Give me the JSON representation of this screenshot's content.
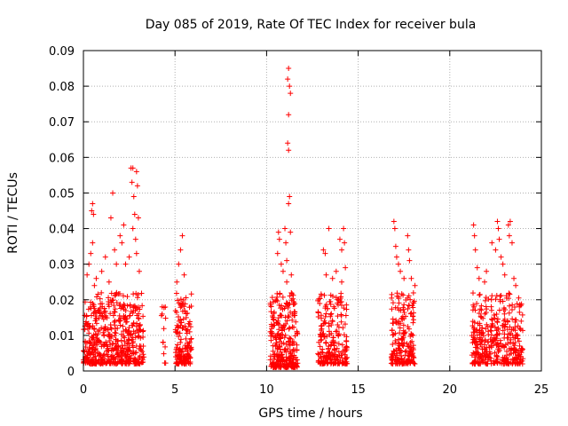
{
  "chart_data": {
    "type": "scatter",
    "title": "Day 085 of 2019, Rate Of TEC Index for receiver bula",
    "xlabel": "GPS time / hours",
    "ylabel": "ROTI / TECUs",
    "xlim": [
      0,
      25
    ],
    "ylim": [
      0,
      0.09
    ],
    "x_ticks": [
      0,
      5,
      10,
      15,
      20,
      25
    ],
    "y_ticks": [
      0,
      0.01,
      0.02,
      0.03,
      0.04,
      0.05,
      0.06,
      0.07,
      0.08,
      0.09
    ],
    "x_tick_labels": [
      "0",
      "5",
      "10",
      "15",
      "20",
      "25"
    ],
    "y_tick_labels": [
      "0",
      "0.01",
      "0.02",
      "0.03",
      "0.04",
      "0.05",
      "0.06",
      "0.07",
      "0.08",
      "0.09"
    ],
    "grid": true,
    "marker": "+",
    "color": "#ff0000",
    "series": [
      {
        "name": "ROTI",
        "clusters": [
          {
            "x_range": [
              0.0,
              3.3
            ],
            "y_range": [
              0.002,
              0.022
            ],
            "count": 520
          },
          {
            "x_range": [
              4.2,
              4.5
            ],
            "y_range": [
              0.002,
              0.018
            ],
            "count": 10
          },
          {
            "x_range": [
              5.0,
              5.9
            ],
            "y_range": [
              0.002,
              0.022
            ],
            "count": 150
          },
          {
            "x_range": [
              10.2,
              11.7
            ],
            "y_range": [
              0.001,
              0.022
            ],
            "count": 280
          },
          {
            "x_range": [
              12.8,
              14.4
            ],
            "y_range": [
              0.002,
              0.022
            ],
            "count": 220
          },
          {
            "x_range": [
              16.8,
              18.1
            ],
            "y_range": [
              0.002,
              0.022
            ],
            "count": 200
          },
          {
            "x_range": [
              21.2,
              24.0
            ],
            "y_range": [
              0.002,
              0.022
            ],
            "count": 380
          }
        ],
        "points": [
          {
            "x": 0.2,
            "y": 0.027
          },
          {
            "x": 0.3,
            "y": 0.03
          },
          {
            "x": 0.45,
            "y": 0.045
          },
          {
            "x": 0.5,
            "y": 0.047
          },
          {
            "x": 0.55,
            "y": 0.044
          },
          {
            "x": 0.5,
            "y": 0.036
          },
          {
            "x": 0.4,
            "y": 0.033
          },
          {
            "x": 0.6,
            "y": 0.024
          },
          {
            "x": 0.7,
            "y": 0.026
          },
          {
            "x": 1.0,
            "y": 0.028
          },
          {
            "x": 1.2,
            "y": 0.032
          },
          {
            "x": 1.4,
            "y": 0.025
          },
          {
            "x": 1.5,
            "y": 0.043
          },
          {
            "x": 1.6,
            "y": 0.05
          },
          {
            "x": 1.7,
            "y": 0.034
          },
          {
            "x": 1.8,
            "y": 0.03
          },
          {
            "x": 2.0,
            "y": 0.038
          },
          {
            "x": 2.1,
            "y": 0.036
          },
          {
            "x": 2.2,
            "y": 0.041
          },
          {
            "x": 2.3,
            "y": 0.03
          },
          {
            "x": 2.5,
            "y": 0.032
          },
          {
            "x": 2.6,
            "y": 0.057
          },
          {
            "x": 2.7,
            "y": 0.057
          },
          {
            "x": 2.65,
            "y": 0.053
          },
          {
            "x": 2.75,
            "y": 0.049
          },
          {
            "x": 2.8,
            "y": 0.044
          },
          {
            "x": 2.7,
            "y": 0.04
          },
          {
            "x": 2.9,
            "y": 0.056
          },
          {
            "x": 2.95,
            "y": 0.052
          },
          {
            "x": 3.0,
            "y": 0.043
          },
          {
            "x": 2.85,
            "y": 0.037
          },
          {
            "x": 2.9,
            "y": 0.033
          },
          {
            "x": 3.05,
            "y": 0.028
          },
          {
            "x": 4.3,
            "y": 0.018
          },
          {
            "x": 4.3,
            "y": 0.016
          },
          {
            "x": 4.35,
            "y": 0.008
          },
          {
            "x": 5.4,
            "y": 0.038
          },
          {
            "x": 5.3,
            "y": 0.034
          },
          {
            "x": 5.2,
            "y": 0.03
          },
          {
            "x": 5.5,
            "y": 0.027
          },
          {
            "x": 5.1,
            "y": 0.025
          },
          {
            "x": 10.65,
            "y": 0.039
          },
          {
            "x": 10.7,
            "y": 0.037
          },
          {
            "x": 10.6,
            "y": 0.033
          },
          {
            "x": 10.8,
            "y": 0.03
          },
          {
            "x": 10.9,
            "y": 0.028
          },
          {
            "x": 11.0,
            "y": 0.04
          },
          {
            "x": 11.05,
            "y": 0.036
          },
          {
            "x": 11.1,
            "y": 0.031
          },
          {
            "x": 11.2,
            "y": 0.085
          },
          {
            "x": 11.15,
            "y": 0.082
          },
          {
            "x": 11.25,
            "y": 0.08
          },
          {
            "x": 11.3,
            "y": 0.078
          },
          {
            "x": 11.2,
            "y": 0.072
          },
          {
            "x": 11.15,
            "y": 0.064
          },
          {
            "x": 11.2,
            "y": 0.062
          },
          {
            "x": 11.25,
            "y": 0.049
          },
          {
            "x": 11.2,
            "y": 0.047
          },
          {
            "x": 11.3,
            "y": 0.039
          },
          {
            "x": 11.35,
            "y": 0.027
          },
          {
            "x": 11.1,
            "y": 0.025
          },
          {
            "x": 13.1,
            "y": 0.034
          },
          {
            "x": 13.2,
            "y": 0.033
          },
          {
            "x": 13.25,
            "y": 0.027
          },
          {
            "x": 13.4,
            "y": 0.04
          },
          {
            "x": 13.6,
            "y": 0.026
          },
          {
            "x": 13.8,
            "y": 0.028
          },
          {
            "x": 14.0,
            "y": 0.037
          },
          {
            "x": 14.1,
            "y": 0.034
          },
          {
            "x": 14.2,
            "y": 0.04
          },
          {
            "x": 14.25,
            "y": 0.036
          },
          {
            "x": 14.3,
            "y": 0.029
          },
          {
            "x": 14.1,
            "y": 0.025
          },
          {
            "x": 16.95,
            "y": 0.042
          },
          {
            "x": 17.0,
            "y": 0.04
          },
          {
            "x": 17.05,
            "y": 0.035
          },
          {
            "x": 17.1,
            "y": 0.032
          },
          {
            "x": 17.2,
            "y": 0.03
          },
          {
            "x": 17.3,
            "y": 0.028
          },
          {
            "x": 17.5,
            "y": 0.026
          },
          {
            "x": 17.7,
            "y": 0.038
          },
          {
            "x": 17.75,
            "y": 0.034
          },
          {
            "x": 17.8,
            "y": 0.031
          },
          {
            "x": 17.9,
            "y": 0.026
          },
          {
            "x": 18.1,
            "y": 0.024
          },
          {
            "x": 21.3,
            "y": 0.041
          },
          {
            "x": 21.35,
            "y": 0.038
          },
          {
            "x": 21.4,
            "y": 0.034
          },
          {
            "x": 21.5,
            "y": 0.029
          },
          {
            "x": 21.6,
            "y": 0.026
          },
          {
            "x": 21.9,
            "y": 0.025
          },
          {
            "x": 22.0,
            "y": 0.028
          },
          {
            "x": 22.3,
            "y": 0.036
          },
          {
            "x": 22.5,
            "y": 0.034
          },
          {
            "x": 22.6,
            "y": 0.042
          },
          {
            "x": 22.65,
            "y": 0.04
          },
          {
            "x": 22.7,
            "y": 0.037
          },
          {
            "x": 22.8,
            "y": 0.032
          },
          {
            "x": 22.9,
            "y": 0.03
          },
          {
            "x": 23.0,
            "y": 0.027
          },
          {
            "x": 23.2,
            "y": 0.041
          },
          {
            "x": 23.3,
            "y": 0.042
          },
          {
            "x": 23.25,
            "y": 0.038
          },
          {
            "x": 23.4,
            "y": 0.036
          },
          {
            "x": 23.5,
            "y": 0.026
          },
          {
            "x": 23.6,
            "y": 0.024
          },
          {
            "x": 23.8,
            "y": 0.018
          },
          {
            "x": 23.9,
            "y": 0.014
          }
        ]
      }
    ]
  }
}
